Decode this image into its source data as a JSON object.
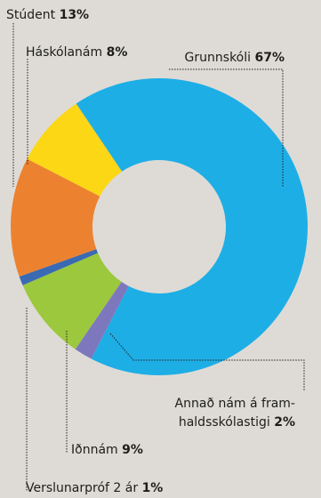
{
  "chart_data": {
    "type": "donut",
    "unit": "%",
    "slices": [
      {
        "label": "Grunnskóli",
        "value": 67,
        "color": "#1eaee6"
      },
      {
        "label": "Annað nám á framhaldsskólastigi",
        "value": 2,
        "color": "#7d78bd"
      },
      {
        "label": "Iðnnám",
        "value": 9,
        "color": "#9bc83d"
      },
      {
        "label": "Verslunarpróf 2 ár",
        "value": 1,
        "color": "#3a6ab4"
      },
      {
        "label": "Stúdent",
        "value": 13,
        "color": "#ec8230"
      },
      {
        "label": "Háskólanám",
        "value": 8,
        "color": "#fcd715"
      }
    ]
  },
  "labels": {
    "grunnskoli": {
      "name": "Grunnskóli",
      "value": "67%"
    },
    "annad": {
      "name_line1": "Annað nám á fram-",
      "name_line2": "haldsskólastigi",
      "value": "2%"
    },
    "idnnam": {
      "name": "Iðnnám",
      "value": "9%"
    },
    "verslunarprof": {
      "name": "Verslunarpróf 2 ár",
      "value": "1%"
    },
    "student": {
      "name": "Stúdent",
      "value": "13%"
    },
    "haskolanam": {
      "name": "Háskólanám",
      "value": "8%"
    }
  }
}
